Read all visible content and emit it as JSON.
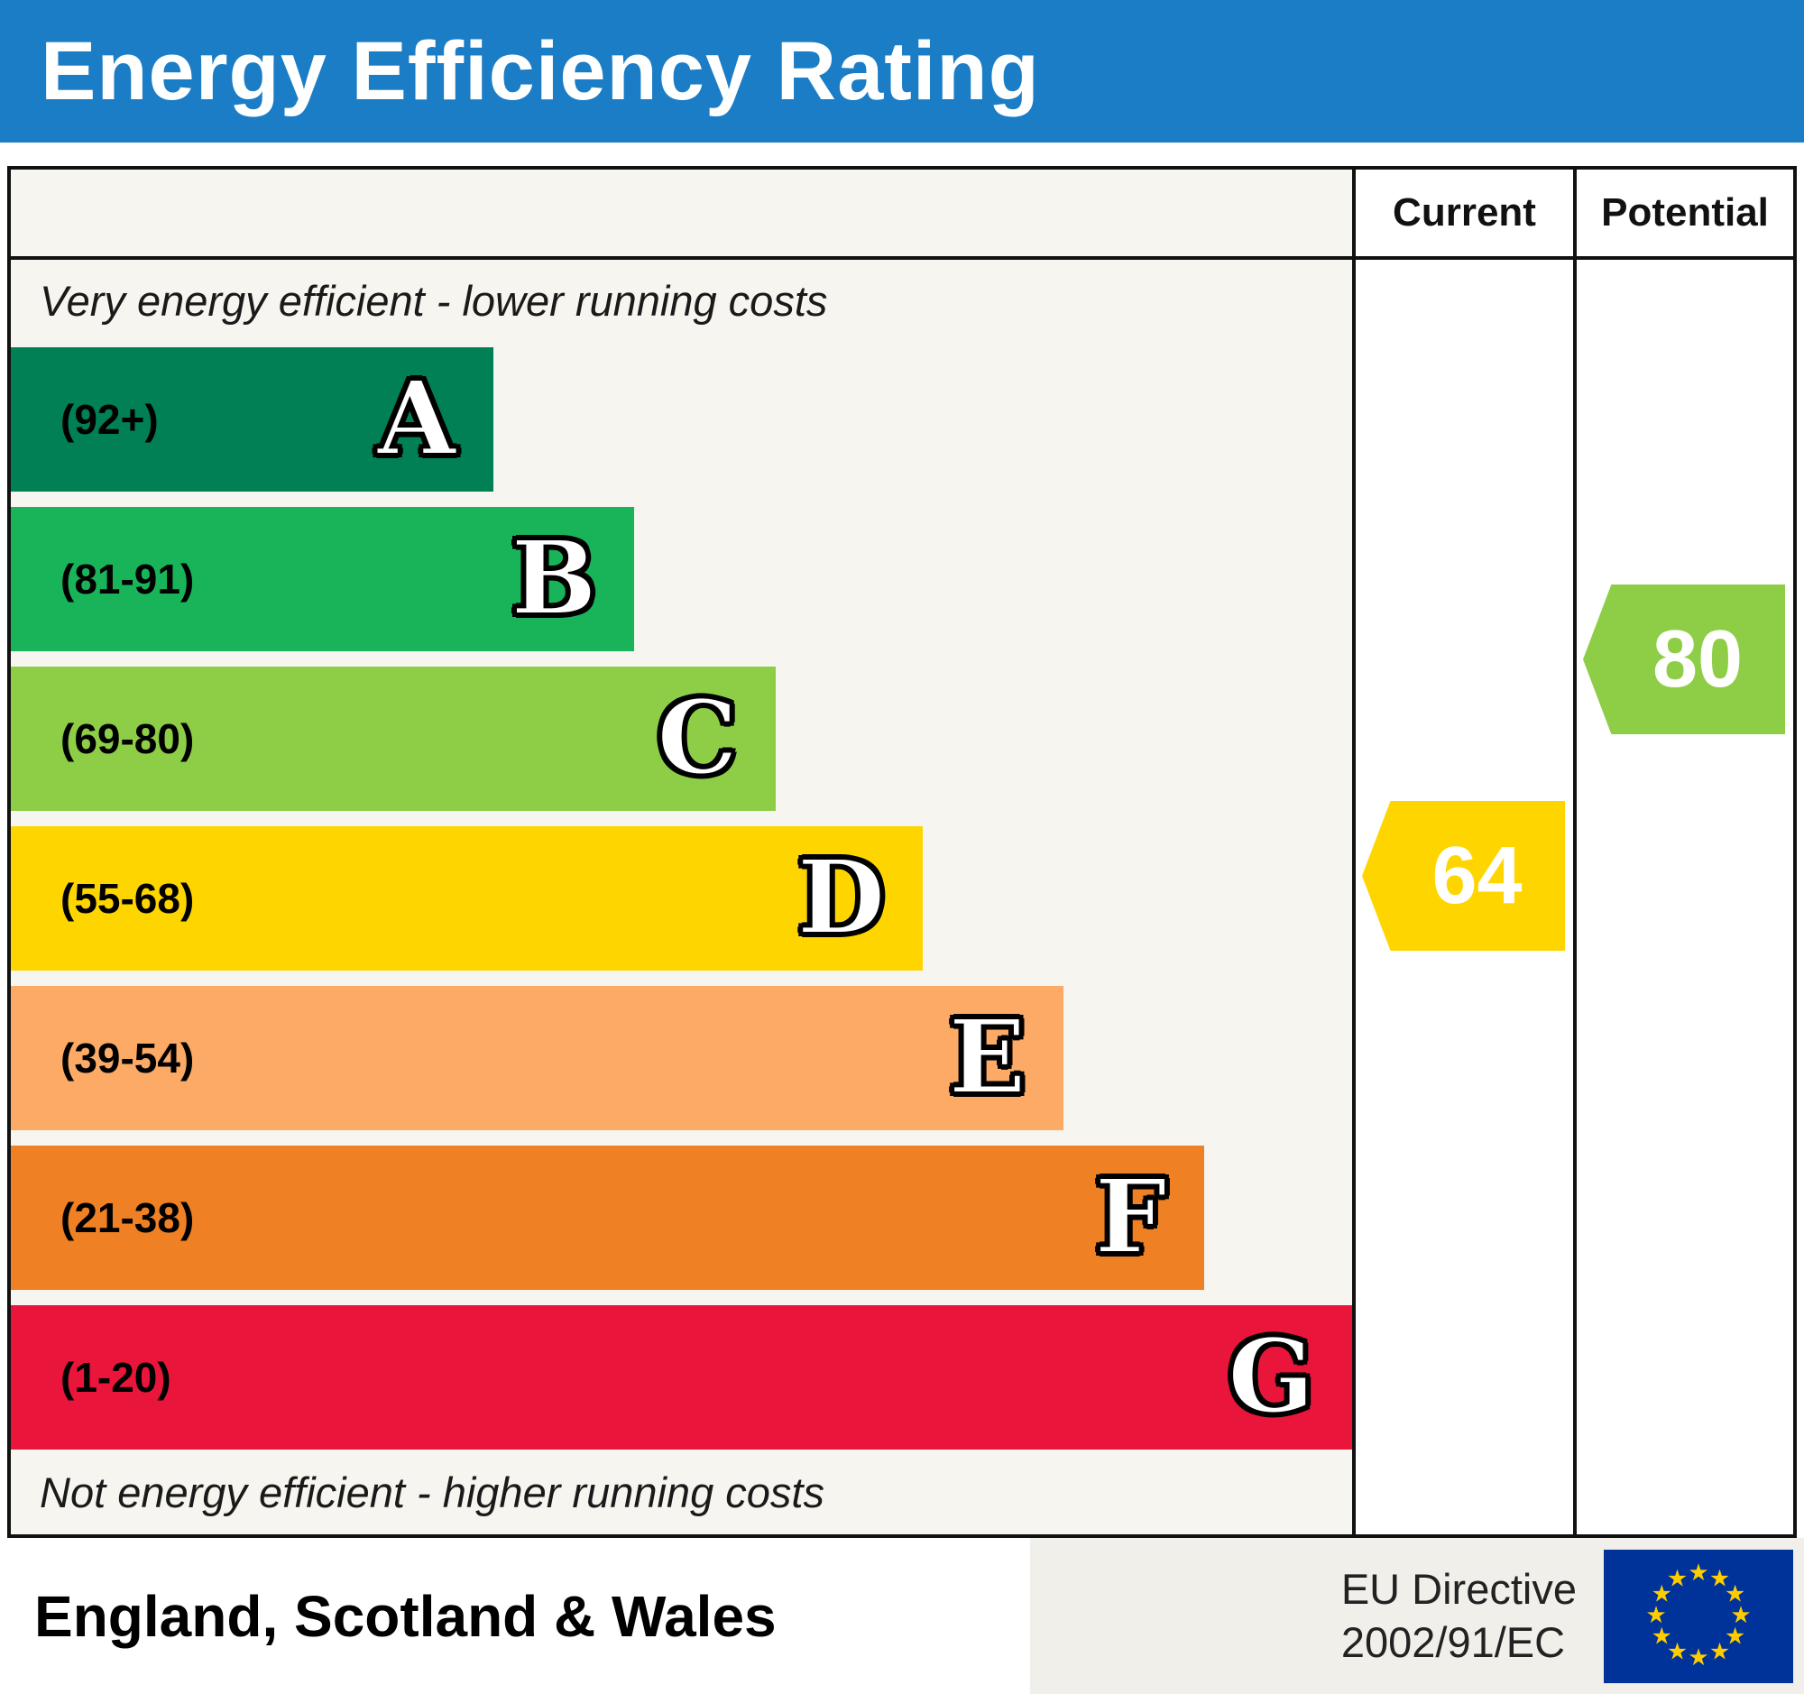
{
  "theme": {
    "header_bg": "#1a7dc6",
    "border_color": "#111111",
    "chart_bg": "#f6f5ef",
    "footer_right_bg": "#f0efe9",
    "flag_blue": "#003399",
    "flag_star_yellow": "#ffcc00"
  },
  "header": {
    "title": "Energy Efficiency Rating"
  },
  "table": {
    "current_label": "Current",
    "potential_label": "Potential",
    "top_note": "Very energy efficient - lower running costs",
    "bottom_note": "Not energy efficient - higher running costs"
  },
  "footer": {
    "region": "England, Scotland & Wales",
    "directive_line1": "EU Directive",
    "directive_line2": "2002/91/EC"
  },
  "chart_data": {
    "type": "bar",
    "title": "Energy Efficiency Rating",
    "bands": [
      {
        "letter": "A",
        "range_label": "(92+)",
        "range": [
          92,
          100
        ],
        "color": "#008054",
        "width_pct": 36
      },
      {
        "letter": "B",
        "range_label": "(81-91)",
        "range": [
          81,
          91
        ],
        "color": "#19b459",
        "width_pct": 46.5
      },
      {
        "letter": "C",
        "range_label": "(69-80)",
        "range": [
          69,
          80
        ],
        "color": "#8dce46",
        "width_pct": 57
      },
      {
        "letter": "D",
        "range_label": "(55-68)",
        "range": [
          55,
          68
        ],
        "color": "#ffd500",
        "width_pct": 68
      },
      {
        "letter": "E",
        "range_label": "(39-54)",
        "range": [
          39,
          54
        ],
        "color": "#fcaa65",
        "width_pct": 78.5
      },
      {
        "letter": "F",
        "range_label": "(21-38)",
        "range": [
          21,
          38
        ],
        "color": "#ef8023",
        "width_pct": 89
      },
      {
        "letter": "G",
        "range_label": "(1-20)",
        "range": [
          1,
          20
        ],
        "color": "#e9153b",
        "width_pct": 100
      }
    ],
    "current": {
      "value": 64,
      "band": "D",
      "color": "#ffd500"
    },
    "potential": {
      "value": 80,
      "band": "C",
      "color": "#8dce46"
    }
  }
}
